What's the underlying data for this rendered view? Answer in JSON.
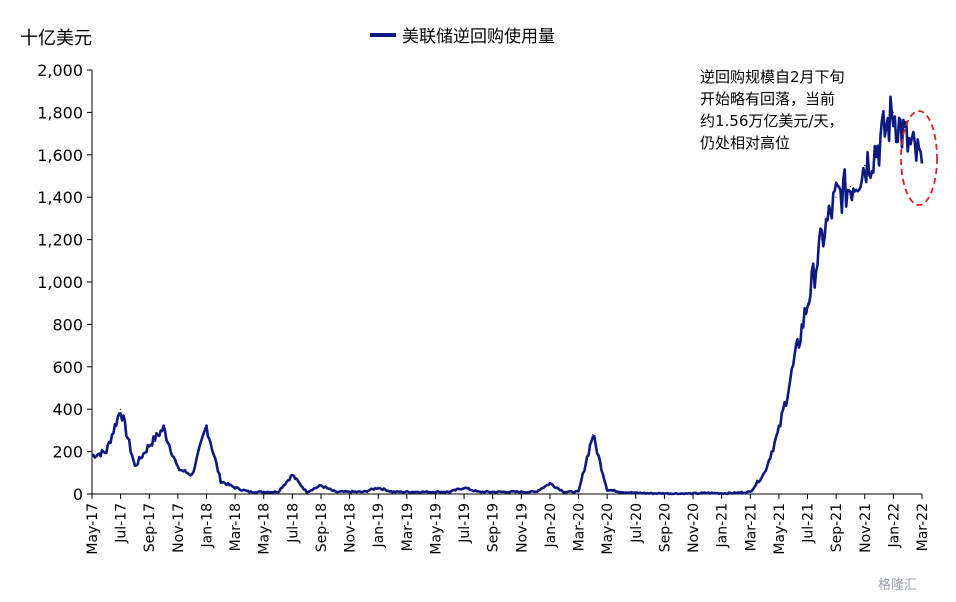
{
  "chart_data": {
    "type": "line",
    "title": "",
    "unit_label": "十亿美元",
    "xlabel": "",
    "ylabel": "",
    "ylim": [
      0,
      2000
    ],
    "y_ticks": [
      0,
      200,
      400,
      600,
      800,
      1000,
      1200,
      1400,
      1600,
      1800,
      2000
    ],
    "y_tick_labels": [
      "0",
      "200",
      "400",
      "600",
      "800",
      "1,000",
      "1,200",
      "1,400",
      "1,600",
      "1,800",
      "2,000"
    ],
    "x_tick_labels": [
      "May-17",
      "Jul-17",
      "Sep-17",
      "Nov-17",
      "Jan-18",
      "Mar-18",
      "May-18",
      "Jul-18",
      "Sep-18",
      "Nov-18",
      "Jan-19",
      "Mar-19",
      "May-19",
      "Jul-19",
      "Sep-19",
      "Nov-19",
      "Jan-20",
      "Mar-20",
      "May-20",
      "Jul-20",
      "Sep-20",
      "Nov-20",
      "Jan-21",
      "Mar-21",
      "May-21",
      "Jul-21",
      "Sep-21",
      "Nov-21",
      "Jan-22",
      "Mar-22"
    ],
    "grid": false,
    "legend_position": "top-center",
    "series": [
      {
        "name": "美联储逆回购使用量",
        "color": "#0d1a80",
        "x": [
          "2017-05",
          "2017-06",
          "2017-07",
          "2017-08",
          "2017-09",
          "2017-10",
          "2017-11",
          "2017-12",
          "2018-01",
          "2018-02",
          "2018-03",
          "2018-04",
          "2018-05",
          "2018-06",
          "2018-07",
          "2018-08",
          "2018-09",
          "2018-10",
          "2018-11",
          "2018-12",
          "2019-01",
          "2019-02",
          "2019-03",
          "2019-04",
          "2019-05",
          "2019-06",
          "2019-07",
          "2019-08",
          "2019-09",
          "2019-10",
          "2019-11",
          "2019-12",
          "2020-01",
          "2020-02",
          "2020-03",
          "2020-04",
          "2020-05",
          "2020-06",
          "2020-07",
          "2020-08",
          "2020-09",
          "2020-10",
          "2020-11",
          "2020-12",
          "2021-01",
          "2021-02",
          "2021-03",
          "2021-04",
          "2021-05",
          "2021-06",
          "2021-07",
          "2021-08",
          "2021-09",
          "2021-10",
          "2021-11",
          "2021-12",
          "2022-01",
          "2022-02",
          "2022-03"
        ],
        "y": [
          180,
          200,
          400,
          130,
          230,
          310,
          120,
          90,
          320,
          60,
          30,
          10,
          10,
          10,
          90,
          10,
          40,
          10,
          10,
          10,
          30,
          10,
          10,
          10,
          10,
          10,
          30,
          10,
          10,
          10,
          10,
          10,
          50,
          10,
          10,
          280,
          20,
          10,
          5,
          3,
          3,
          2,
          2,
          5,
          3,
          5,
          10,
          100,
          300,
          600,
          900,
          1200,
          1400,
          1450,
          1550,
          1650,
          1800,
          1650,
          1560
        ]
      }
    ]
  },
  "annotation": {
    "lines": [
      "逆回购规模自2月下旬",
      "开始略有回落，当前",
      "约1.56万亿美元/天，",
      "仍处相对高位"
    ]
  },
  "watermark": "格隆汇",
  "highlight": {
    "shape": "dashed-ellipse",
    "color": "#e02020"
  }
}
